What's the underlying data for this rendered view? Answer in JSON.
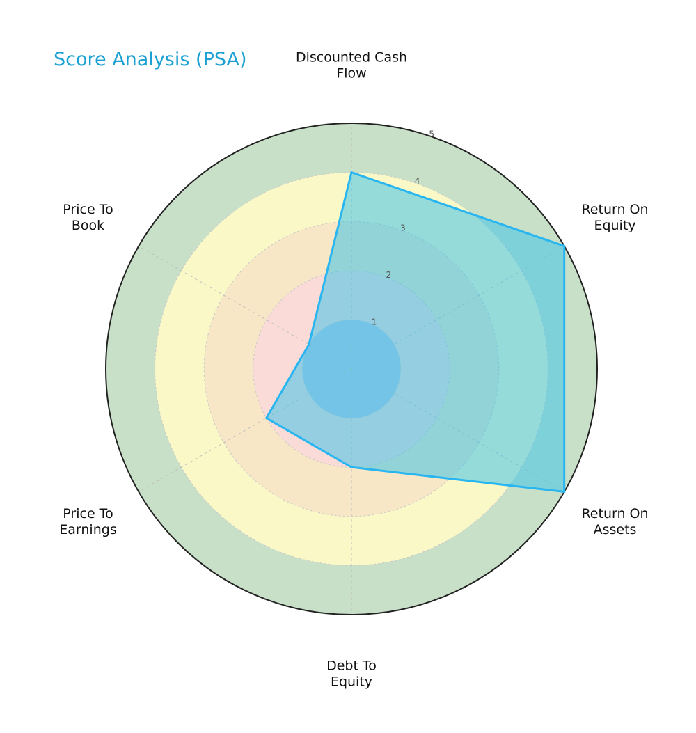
{
  "chart_data": {
    "type": "radar",
    "title": "Score Analysis (PSA)",
    "axes": [
      [
        "Discounted Cash",
        "Flow"
      ],
      [
        "Return On",
        "Equity"
      ],
      [
        "Return On",
        "Assets"
      ],
      [
        "Debt To",
        "Equity"
      ],
      [
        "Price To",
        "Earnings"
      ],
      [
        "Price To",
        "Book"
      ]
    ],
    "values": [
      4,
      5,
      5,
      2,
      2,
      1
    ],
    "rlim": [
      0,
      5
    ],
    "ring_ticks": [
      "1",
      "2",
      "3",
      "4",
      "5"
    ],
    "background_bands": [
      {
        "from": 0,
        "to": 1,
        "color": "#b3c6e7"
      },
      {
        "from": 1,
        "to": 2,
        "color": "#fadbd8"
      },
      {
        "from": 2,
        "to": 3,
        "color": "#f7e7c6"
      },
      {
        "from": 3,
        "to": 4,
        "color": "#fbf8c8"
      },
      {
        "from": 4,
        "to": 5,
        "color": "#c9e0c8"
      }
    ],
    "series_color": "#29b6f0",
    "series_fill": "#3fc2e8",
    "title_color": "#1aa0d2",
    "grid": true
  }
}
